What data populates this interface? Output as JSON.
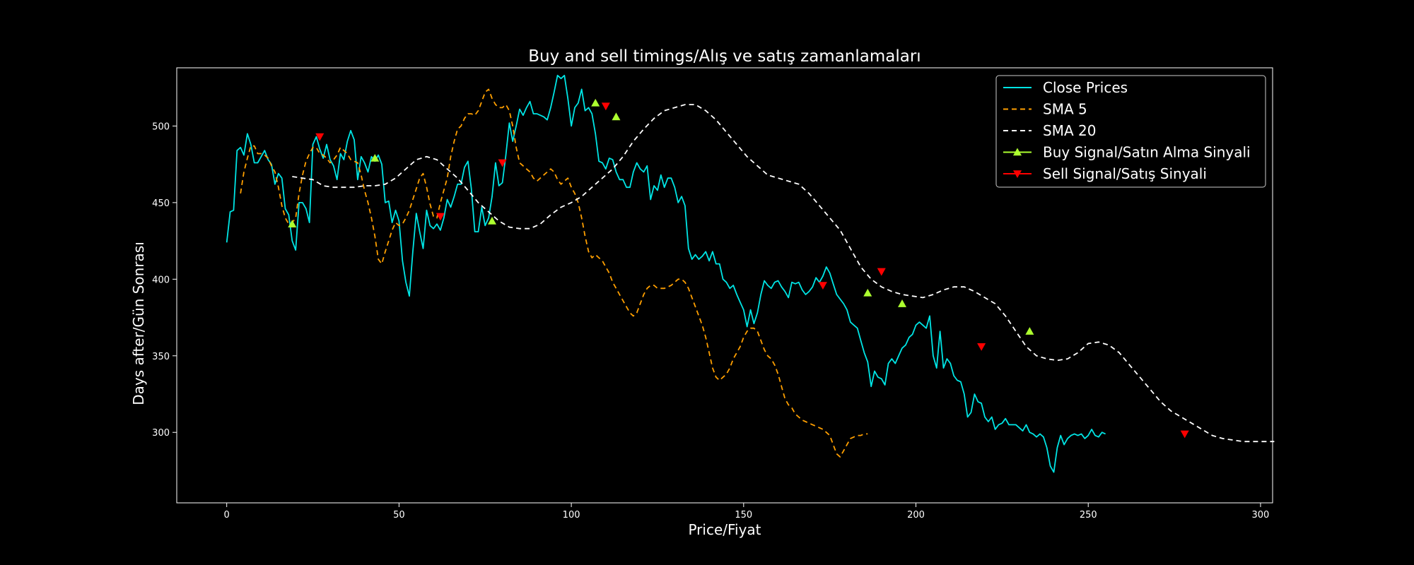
{
  "chart_data": {
    "type": "line",
    "title": "Buy and sell timings/Alış ve satış zamanlamaları",
    "xlabel": "Price/Fiyat",
    "ylabel": "Days after/Gün Sonrası",
    "xlim": [
      -14.5,
      303.5
    ],
    "ylim": [
      254,
      538
    ],
    "xticks": [
      0,
      50,
      100,
      150,
      200,
      250,
      300
    ],
    "yticks": [
      300,
      350,
      400,
      450,
      500
    ],
    "grid": false,
    "legend_position": "top-right",
    "colors": {
      "background": "#000000",
      "axes": "#ffffff",
      "close": "#00e5e5",
      "sma5": "#ff9f00",
      "sma20": "#ffffff",
      "buy": "#adff2f",
      "sell": "#ff0000"
    },
    "series": [
      {
        "name": "Close Prices",
        "style": "solid",
        "x_start": 0,
        "values": [
          424,
          444,
          445,
          484,
          486,
          481,
          495,
          488,
          476,
          476,
          480,
          484,
          478,
          475,
          462,
          469,
          466,
          446,
          442,
          425,
          419,
          450,
          450,
          446,
          437,
          488,
          493,
          485,
          479,
          488,
          478,
          474,
          465,
          482,
          478,
          490,
          497,
          491,
          465,
          480,
          476,
          470,
          480,
          477,
          481,
          475,
          450,
          451,
          437,
          445,
          438,
          412,
          398,
          389,
          418,
          443,
          431,
          420,
          445,
          435,
          433,
          436,
          432,
          440,
          452,
          447,
          454,
          462,
          462,
          473,
          477,
          459,
          431,
          431,
          447,
          435,
          440,
          454,
          476,
          461,
          463,
          481,
          502,
          490,
          500,
          511,
          507,
          512,
          516,
          508,
          508,
          507,
          506,
          504,
          512,
          522,
          533,
          531,
          533,
          518,
          500,
          512,
          515,
          524,
          510,
          512,
          508,
          495,
          477,
          476,
          472,
          479,
          478,
          470,
          465,
          465,
          460,
          460,
          470,
          476,
          472,
          470,
          474,
          452,
          461,
          458,
          468,
          460,
          466,
          466,
          460,
          450,
          454,
          448,
          420,
          413,
          416,
          413,
          415,
          418,
          412,
          418,
          410,
          410,
          400,
          398,
          394,
          396,
          390,
          385,
          380,
          369,
          380,
          371,
          378,
          390,
          399,
          396,
          394,
          398,
          399,
          395,
          392,
          388,
          398,
          397,
          398,
          393,
          390,
          392,
          395,
          401,
          398,
          402,
          408,
          404,
          397,
          390,
          387,
          384,
          380,
          372,
          370,
          368,
          360,
          352,
          346,
          330,
          340,
          336,
          335,
          331,
          345,
          348,
          345,
          350,
          355,
          357,
          362,
          364,
          370,
          372,
          370,
          368,
          376,
          350,
          342,
          366,
          342,
          348,
          345,
          337,
          334,
          333,
          325,
          310,
          313,
          325,
          320,
          319,
          310,
          307,
          310,
          302,
          305,
          306,
          309,
          305,
          305,
          305,
          303,
          301,
          305,
          300,
          299,
          297,
          299,
          297,
          290,
          278,
          274,
          290,
          298,
          292,
          296,
          298,
          299,
          298,
          299,
          296,
          298,
          302,
          298,
          297,
          300,
          299
        ],
        "values_note": ""
      },
      {
        "name": "SMA 5",
        "style": "dashed",
        "x_start": 4,
        "values": [
          456,
          470,
          479,
          487,
          487,
          482,
          482,
          481,
          479,
          474,
          470,
          460,
          448,
          440,
          436,
          437,
          440,
          456,
          468,
          477,
          482,
          486,
          486,
          482,
          481,
          479,
          476,
          478,
          481,
          486,
          484,
          482,
          478,
          477,
          476,
          468,
          458,
          450,
          440,
          428,
          413,
          410,
          418,
          425,
          432,
          437,
          435,
          436,
          440,
          445,
          452,
          459,
          466,
          469,
          460,
          449,
          441,
          440,
          450,
          458,
          466,
          480,
          490,
          498,
          500,
          505,
          508,
          508,
          507,
          510,
          516,
          522,
          524,
          518,
          514,
          512,
          512,
          514,
          510,
          500,
          486,
          476,
          474,
          472,
          470,
          466,
          464,
          466,
          468,
          470,
          472,
          470,
          465,
          462,
          464,
          466,
          460,
          456,
          450,
          440,
          428,
          418,
          414,
          416,
          414,
          412,
          408,
          404,
          398,
          394,
          390,
          386,
          382,
          378,
          376,
          378,
          384,
          390,
          394,
          396,
          396,
          394,
          394,
          394,
          395,
          396,
          398,
          400,
          400,
          398,
          394,
          388,
          382,
          376,
          370,
          362,
          352,
          342,
          336,
          334,
          336,
          338,
          342,
          348,
          352,
          356,
          362,
          366,
          368,
          368,
          366,
          360,
          354,
          350,
          348,
          344,
          338,
          330,
          322,
          318,
          316,
          312,
          310,
          308,
          307,
          306,
          305,
          304,
          303,
          302,
          300,
          298,
          292,
          286,
          284,
          288,
          292,
          296,
          297,
          298,
          298,
          299,
          299
        ],
        "values_note": ""
      },
      {
        "name": "SMA 20",
        "style": "dashed",
        "x_start": 19,
        "values": [
          467,
          466,
          465,
          461,
          460,
          460,
          460,
          461,
          461,
          462,
          466,
          472,
          478,
          480,
          478,
          472,
          466,
          458,
          450,
          444,
          438,
          434,
          433,
          433,
          436,
          442,
          447,
          450,
          454,
          460,
          466,
          472,
          480,
          490,
          498,
          505,
          510,
          512,
          514,
          514,
          510,
          504,
          496,
          488,
          480,
          474,
          468,
          466,
          464,
          462,
          456,
          448,
          440,
          432,
          420,
          408,
          400,
          395,
          392,
          390,
          389,
          388,
          390,
          393,
          395,
          395,
          392,
          388,
          384,
          376,
          366,
          356,
          350,
          348,
          347,
          348,
          352,
          358,
          359,
          357,
          352,
          344,
          336,
          328,
          320,
          314,
          310,
          306,
          302,
          298,
          296,
          295,
          294,
          294,
          294,
          294
        ],
        "x_step": 3,
        "values_note": ""
      }
    ],
    "buy_signals": [
      {
        "x": 19,
        "y": 436
      },
      {
        "x": 43,
        "y": 479
      },
      {
        "x": 77,
        "y": 438
      },
      {
        "x": 107,
        "y": 515
      },
      {
        "x": 113,
        "y": 506
      },
      {
        "x": 186,
        "y": 391
      },
      {
        "x": 196,
        "y": 384
      },
      {
        "x": 233,
        "y": 366
      }
    ],
    "sell_signals": [
      {
        "x": 27,
        "y": 493
      },
      {
        "x": 62,
        "y": 441
      },
      {
        "x": 80,
        "y": 476
      },
      {
        "x": 110,
        "y": 513
      },
      {
        "x": 173,
        "y": 396
      },
      {
        "x": 190,
        "y": 405
      },
      {
        "x": 219,
        "y": 356
      },
      {
        "x": 278,
        "y": 299
      }
    ],
    "legend": [
      {
        "label": "Close Prices",
        "kind": "line",
        "color": "#00e5e5"
      },
      {
        "label": "SMA 5",
        "kind": "dashed",
        "color": "#ff9f00"
      },
      {
        "label": "SMA 20",
        "kind": "dashed",
        "color": "#ffffff"
      },
      {
        "label": "Buy Signal/Satın Alma Sinyali",
        "kind": "buy",
        "color": "#adff2f"
      },
      {
        "label": "Sell Signal/Satış Sinyali",
        "kind": "sell",
        "color": "#ff0000"
      }
    ]
  }
}
